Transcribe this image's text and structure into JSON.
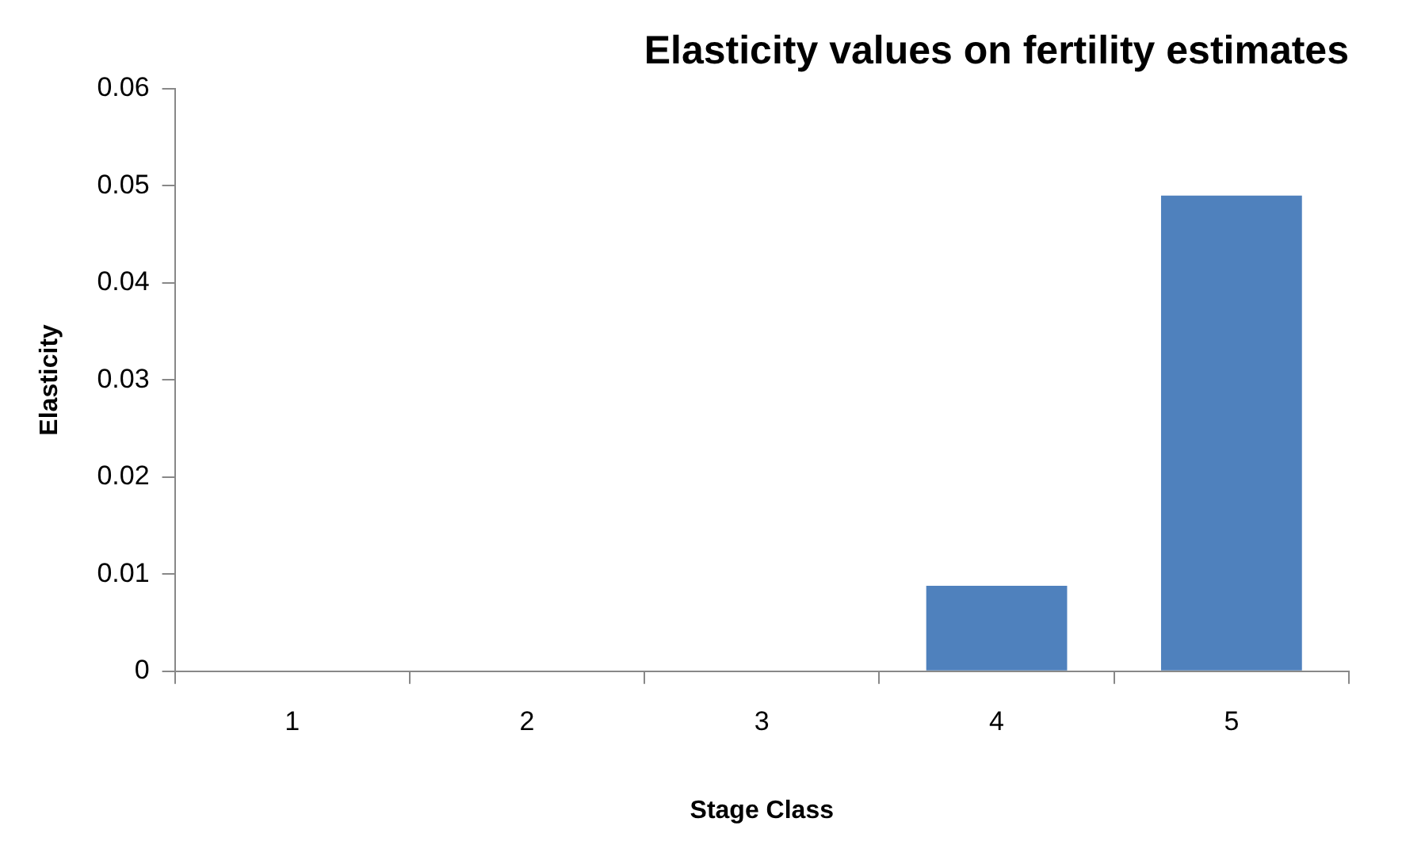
{
  "chart_data": {
    "type": "bar",
    "title": "Elasticity values on fertility estimates",
    "xlabel": "Stage Class",
    "ylabel": "Elasticity",
    "categories": [
      "1",
      "2",
      "3",
      "4",
      "5"
    ],
    "values": [
      0,
      0,
      0,
      0.0088,
      0.049
    ],
    "color": "#4f81bd",
    "ylim": [
      0,
      0.06
    ],
    "yticks": [
      0,
      0.01,
      0.02,
      0.03,
      0.04,
      0.05,
      0.06
    ],
    "grid": false,
    "legend": false
  }
}
